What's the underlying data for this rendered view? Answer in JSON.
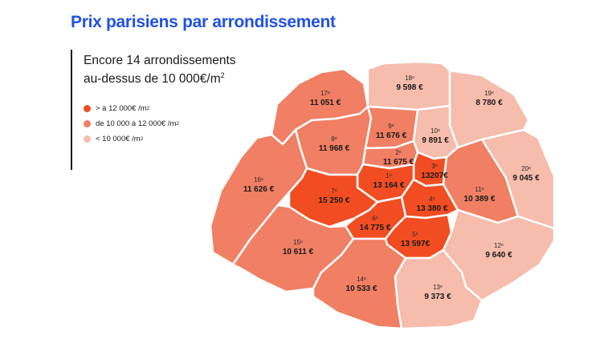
{
  "title": "Prix parisiens par arrondissement",
  "subtitle": {
    "line1": "Encore 14 arrondissements",
    "line2": "au-dessus de 10 000€/m",
    "sup": "2"
  },
  "colors": {
    "title": "#2150e6",
    "high": "#f24d22",
    "mid": "#f07f63",
    "low": "#f6bcac",
    "border": "#ffffff"
  },
  "legend": [
    {
      "key": "high",
      "label": "> à 12 000€ /m",
      "sup": "2"
    },
    {
      "key": "mid",
      "label": "de 10 000 à 12 000€ /m",
      "sup": "2"
    },
    {
      "key": "low",
      "label": "< 10 000€ /m",
      "sup": "2"
    }
  ],
  "districts": [
    {
      "id": "d17",
      "name": "17ᵉ",
      "price": "11 051 €",
      "tier": "mid"
    },
    {
      "id": "d18",
      "name": "18ᵉ",
      "price": "9 598 €",
      "tier": "low"
    },
    {
      "id": "d19",
      "name": "19ᵉ",
      "price": "8 780 €",
      "tier": "low"
    },
    {
      "id": "d8",
      "name": "8ᵉ",
      "price": "11 968 €",
      "tier": "mid"
    },
    {
      "id": "d9",
      "name": "9ᵉ",
      "price": "11 676 €",
      "tier": "mid"
    },
    {
      "id": "d10",
      "name": "10ᵉ",
      "price": "9 891 €",
      "tier": "low"
    },
    {
      "id": "d2",
      "name": "2ᵉ",
      "price": "11 675 €",
      "tier": "mid"
    },
    {
      "id": "d3",
      "name": "3ᵉ",
      "price": "13207€",
      "tier": "high"
    },
    {
      "id": "d1",
      "name": "1ᵉ",
      "price": "13 164 €",
      "tier": "high"
    },
    {
      "id": "d16",
      "name": "16ᵉ",
      "price": "11 626 €",
      "tier": "mid"
    },
    {
      "id": "d7",
      "name": "7ᵉ",
      "price": "15 250 €",
      "tier": "high"
    },
    {
      "id": "d4",
      "name": "4ᵉ",
      "price": "13 380 €",
      "tier": "high"
    },
    {
      "id": "d11",
      "name": "11ᵉ",
      "price": "10 389 €",
      "tier": "mid"
    },
    {
      "id": "d20",
      "name": "20ᵉ",
      "price": "9 045 €",
      "tier": "low"
    },
    {
      "id": "d6",
      "name": "6ᵉ",
      "price": "14 775 €",
      "tier": "high"
    },
    {
      "id": "d5",
      "name": "5ᵉ",
      "price": "13 597€",
      "tier": "high"
    },
    {
      "id": "d15",
      "name": "15ᵉ",
      "price": "10 611 €",
      "tier": "mid"
    },
    {
      "id": "d12",
      "name": "12ᵉ",
      "price": "9 640 €",
      "tier": "low"
    },
    {
      "id": "d14",
      "name": "14ᵉ",
      "price": "10 533 €",
      "tier": "mid"
    },
    {
      "id": "d13",
      "name": "13ᵉ",
      "price": "9 373 €",
      "tier": "low"
    }
  ]
}
